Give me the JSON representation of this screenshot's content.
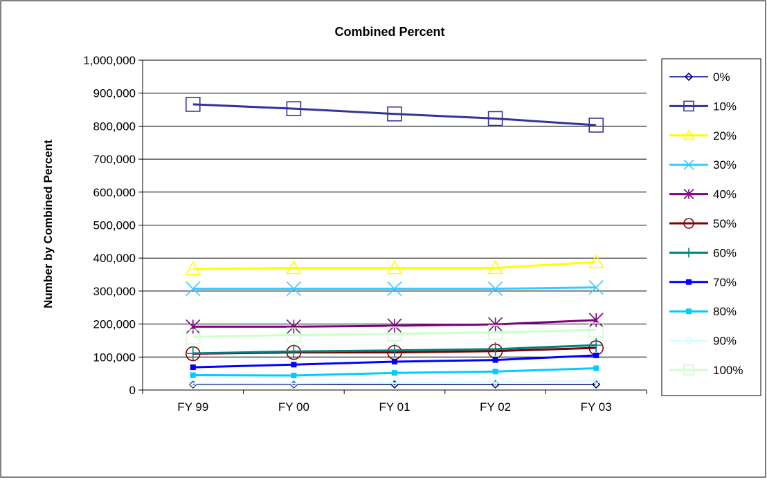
{
  "chart_data": {
    "type": "line",
    "title": "Combined Percent",
    "xlabel": "",
    "ylabel": "Number by Combined Percent",
    "categories": [
      "FY 99",
      "FY 00",
      "FY 01",
      "FY 02",
      "FY 03"
    ],
    "ylim": [
      0,
      1000000
    ],
    "yticks": [
      "0",
      "100,000",
      "200,000",
      "300,000",
      "400,000",
      "500,000",
      "600,000",
      "700,000",
      "800,000",
      "900,000",
      "1,000,000"
    ],
    "grid": true,
    "legend_position": "right",
    "series": [
      {
        "name": "0%",
        "color": "#000080",
        "marker": "diamond",
        "values": [
          17000,
          17000,
          17000,
          17000,
          17000
        ]
      },
      {
        "name": "10%",
        "color": "#333399",
        "marker": "square",
        "values": [
          866000,
          853000,
          837000,
          823000,
          803000
        ]
      },
      {
        "name": "20%",
        "color": "#FFFF00",
        "marker": "triangle",
        "values": [
          367000,
          370000,
          370000,
          370000,
          388000
        ]
      },
      {
        "name": "30%",
        "color": "#33CCFF",
        "marker": "x",
        "values": [
          307000,
          307000,
          307000,
          307000,
          311000
        ]
      },
      {
        "name": "40%",
        "color": "#800080",
        "marker": "star",
        "values": [
          192000,
          192000,
          195000,
          199000,
          212000
        ]
      },
      {
        "name": "50%",
        "color": "#800000",
        "marker": "circle",
        "values": [
          110000,
          114000,
          114000,
          118000,
          128000
        ]
      },
      {
        "name": "60%",
        "color": "#008080",
        "marker": "plus",
        "values": [
          111000,
          117000,
          120000,
          124000,
          136000
        ]
      },
      {
        "name": "70%",
        "color": "#0000FF",
        "marker": "smallsquare",
        "values": [
          69000,
          77000,
          86000,
          91000,
          105000
        ]
      },
      {
        "name": "80%",
        "color": "#00CCFF",
        "marker": "smallsquare",
        "values": [
          45000,
          44000,
          52000,
          56000,
          66000
        ]
      },
      {
        "name": "90%",
        "color": "#CCFFFF",
        "marker": "diamond",
        "values": [
          20000,
          20000,
          22000,
          24000,
          27000
        ]
      },
      {
        "name": "100%",
        "color": "#CCFFCC",
        "marker": "square",
        "values": [
          161000,
          167000,
          170000,
          175000,
          182000
        ]
      }
    ]
  }
}
